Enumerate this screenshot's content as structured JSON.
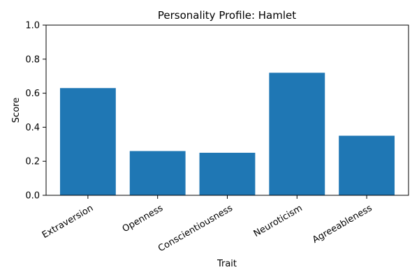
{
  "chart_data": {
    "type": "bar",
    "title": "Personality Profile: Hamlet",
    "xlabel": "Trait",
    "ylabel": "Score",
    "categories": [
      "Extraversion",
      "Openness",
      "Conscientiousness",
      "Neuroticism",
      "Agreeableness"
    ],
    "values": [
      0.63,
      0.26,
      0.25,
      0.72,
      0.35
    ],
    "ylim": [
      0,
      1.0
    ],
    "yticks": [
      "0.0",
      "0.2",
      "0.4",
      "0.6",
      "0.8",
      "1.0"
    ],
    "bar_color": "#1f77b4",
    "grid": false,
    "legend": "none"
  }
}
